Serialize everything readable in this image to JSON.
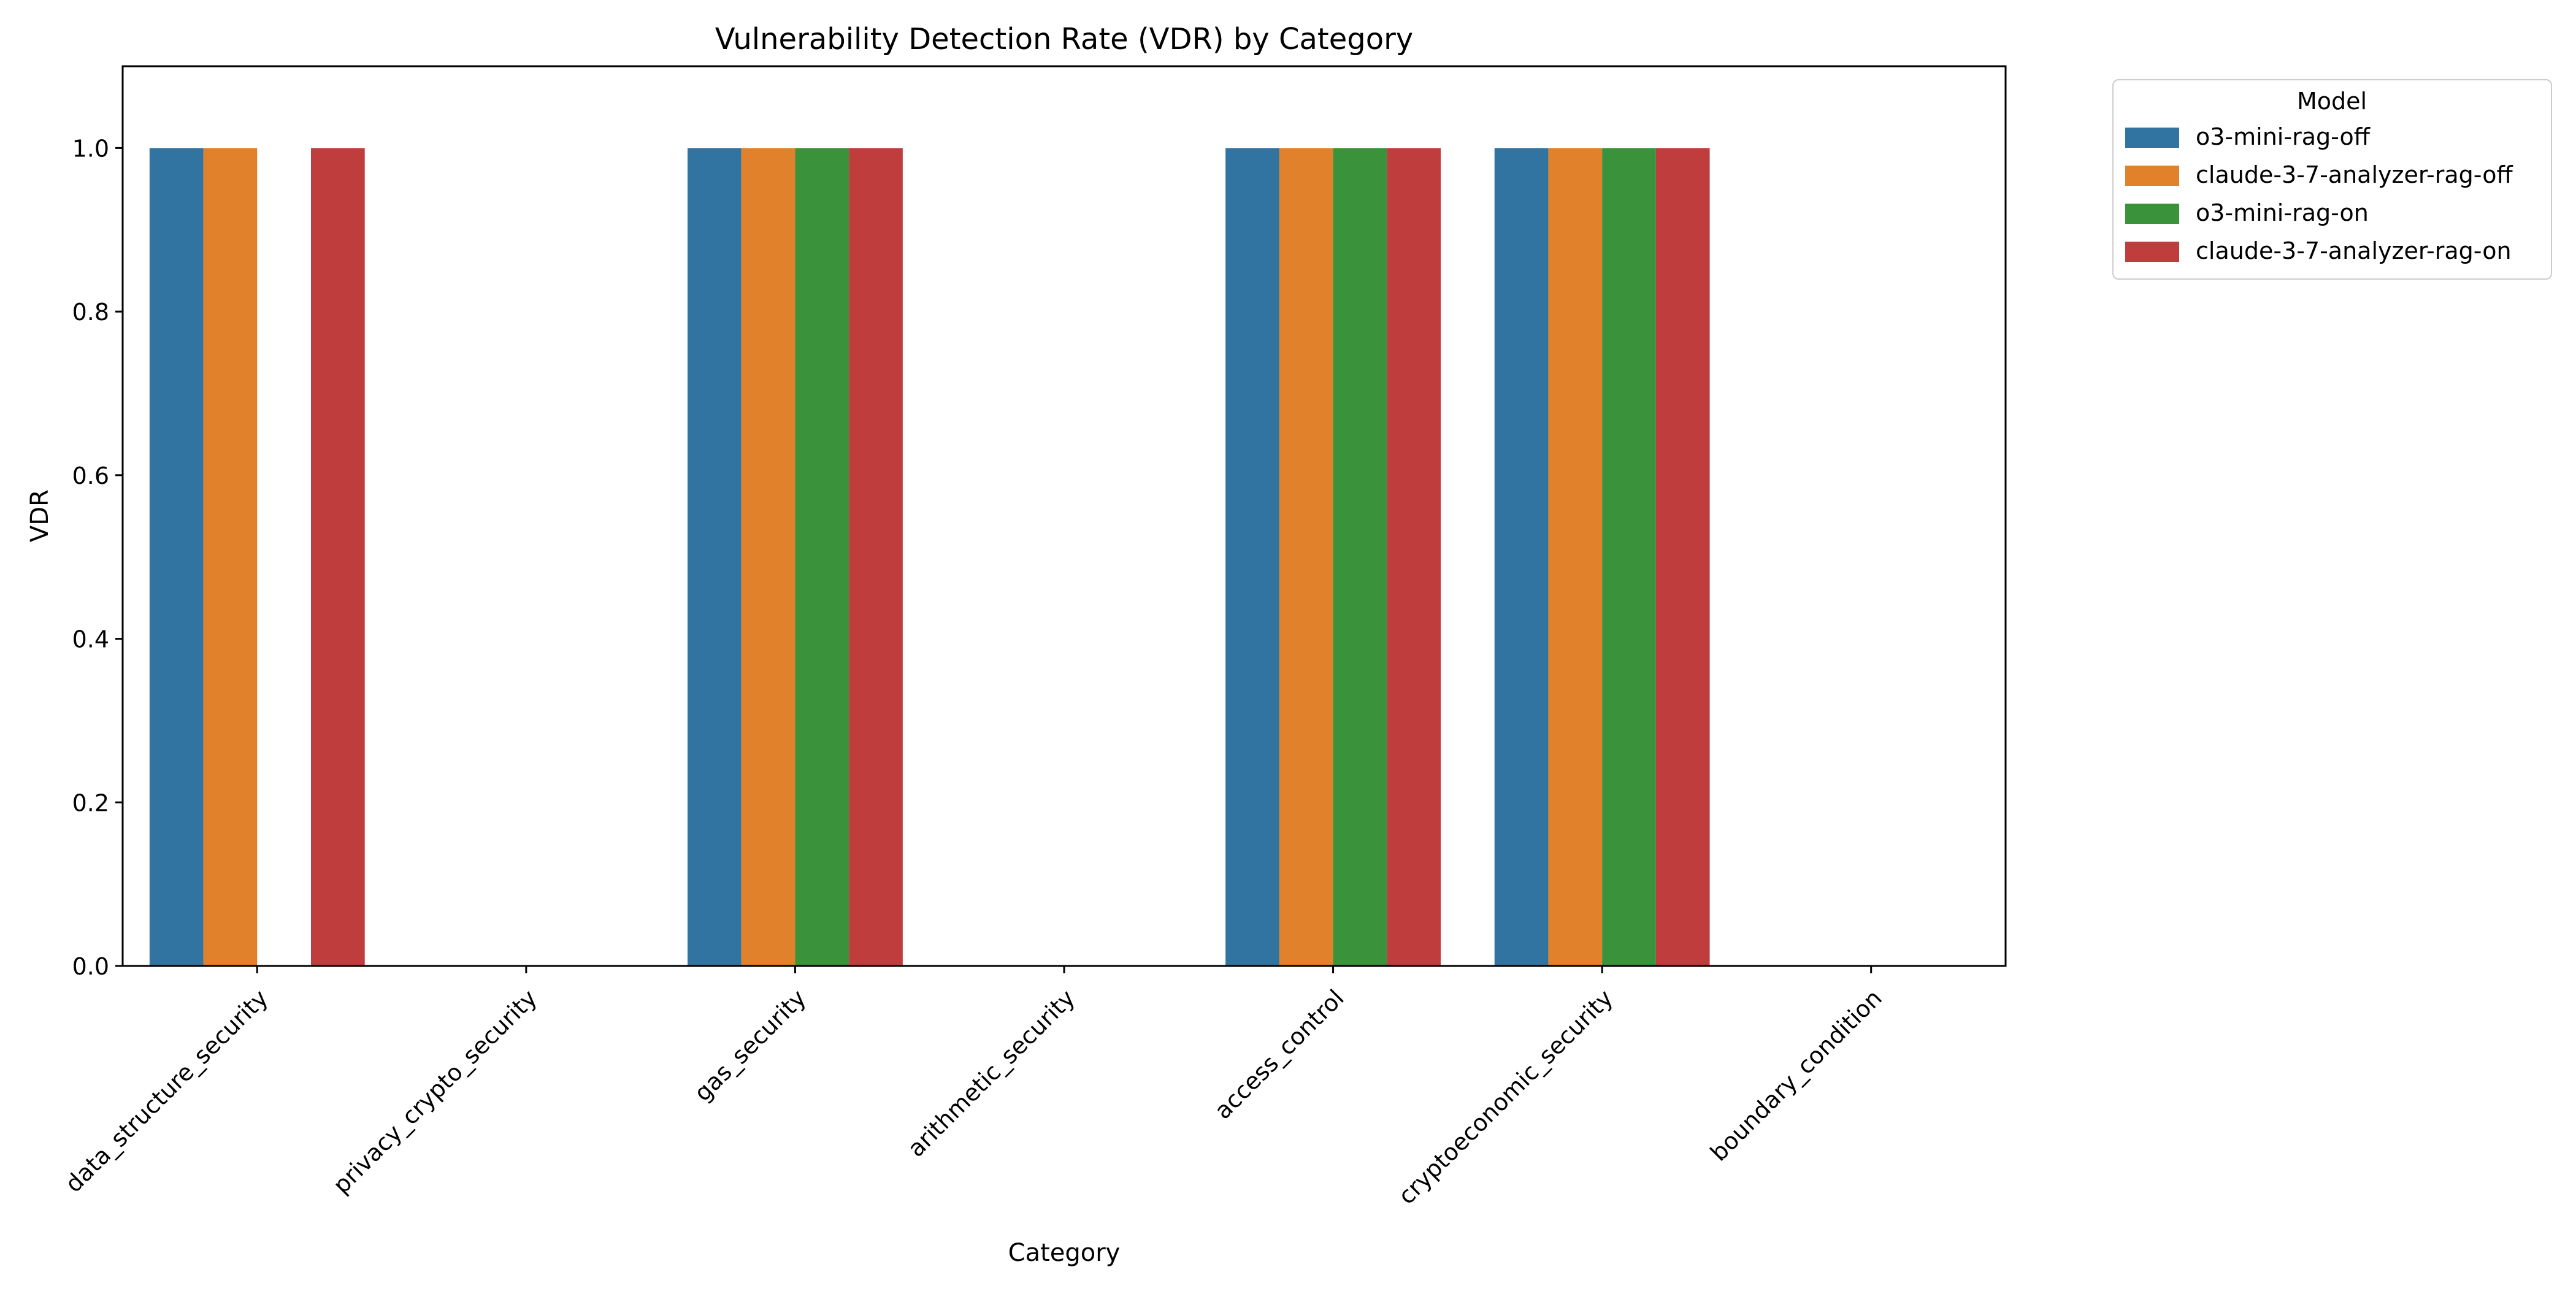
{
  "chart_data": {
    "type": "bar",
    "title": "Vulnerability Detection Rate (VDR) by Category",
    "xlabel": "Category",
    "ylabel": "VDR",
    "ylim": [
      0,
      1.1
    ],
    "yticks": [
      "0.0",
      "0.2",
      "0.4",
      "0.6",
      "0.8",
      "1.0"
    ],
    "grid": false,
    "legend": {
      "title": "Model",
      "placement": "outside-top-right"
    },
    "categories": [
      "data_structure_security",
      "privacy_crypto_security",
      "gas_security",
      "arithmetic_security",
      "access_control",
      "cryptoeconomic_security",
      "boundary_condition"
    ],
    "series": [
      {
        "name": "o3-mini-rag-off",
        "color": "#3274a1",
        "values": [
          1,
          0,
          1,
          0,
          1,
          1,
          0
        ]
      },
      {
        "name": "claude-3-7-analyzer-rag-off",
        "color": "#e1812c",
        "values": [
          1,
          0,
          1,
          0,
          1,
          1,
          0
        ]
      },
      {
        "name": "o3-mini-rag-on",
        "color": "#3a923a",
        "values": [
          0,
          0,
          1,
          0,
          1,
          1,
          0
        ]
      },
      {
        "name": "claude-3-7-analyzer-rag-on",
        "color": "#c03d3e",
        "values": [
          1,
          0,
          1,
          0,
          1,
          1,
          0
        ]
      }
    ]
  }
}
